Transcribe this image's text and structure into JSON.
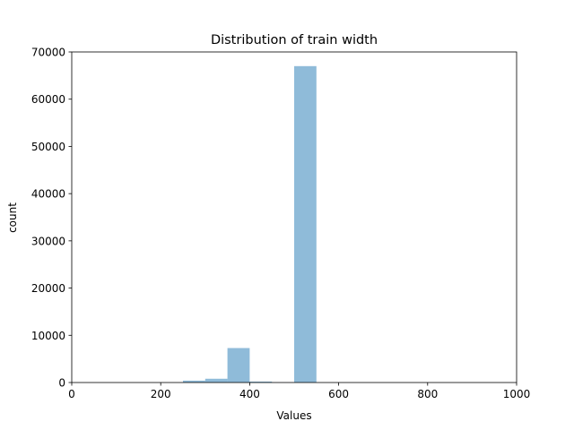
{
  "chart_data": {
    "type": "bar",
    "title": "Distribution of train width",
    "xlabel": "Values",
    "ylabel": "count",
    "xlim": [
      0,
      1000
    ],
    "ylim": [
      0,
      70000
    ],
    "xticks": [
      0,
      200,
      400,
      600,
      800,
      1000
    ],
    "yticks": [
      0,
      10000,
      20000,
      30000,
      40000,
      50000,
      60000,
      70000
    ],
    "grid": false,
    "bar_color": "#1f77b4",
    "bar_alpha": 0.5,
    "bins": [
      {
        "x0": 250,
        "x1": 300,
        "value": 400
      },
      {
        "x0": 300,
        "x1": 350,
        "value": 800
      },
      {
        "x0": 350,
        "x1": 400,
        "value": 7300
      },
      {
        "x0": 400,
        "x1": 450,
        "value": 200
      },
      {
        "x0": 450,
        "x1": 500,
        "value": 30
      },
      {
        "x0": 500,
        "x1": 550,
        "value": 67000
      }
    ]
  }
}
